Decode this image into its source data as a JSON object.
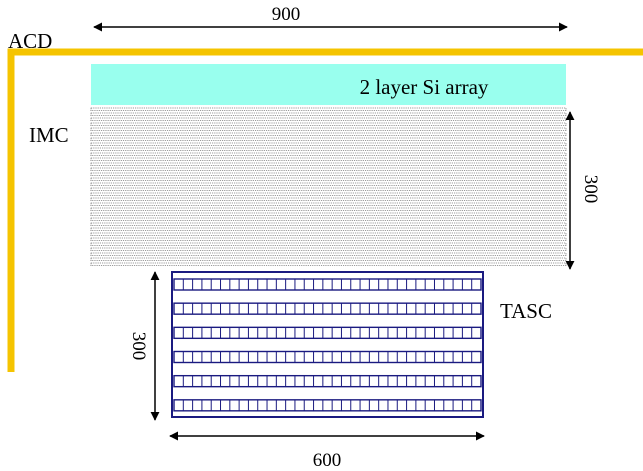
{
  "labels": {
    "width_top": "900",
    "acd": "ACD",
    "si_array": "2 layer Si array",
    "imc": "IMC",
    "imc_height": "300",
    "tasc": "TASC",
    "tasc_height": "300",
    "tasc_width": "600"
  },
  "colors": {
    "acd": "#f5c400",
    "si_array": "#99ffee",
    "imc_line": "#333333",
    "tasc_frame": "#1a1a80",
    "arrow": "#000000"
  },
  "structure": {
    "imc_layers": 32,
    "tasc_layers": 6,
    "tasc_cells_per_layer": 33
  }
}
